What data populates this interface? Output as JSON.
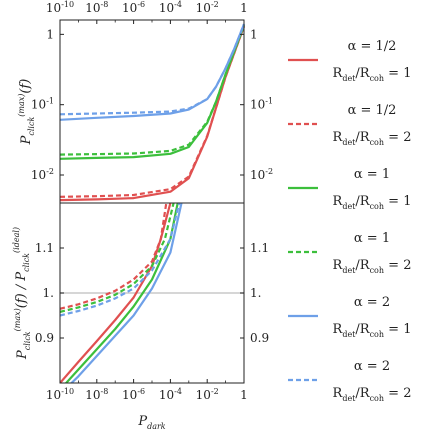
{
  "chart_data": {
    "type": "line",
    "x_scale": "log",
    "xlim": [
      1e-10,
      1
    ],
    "xlabel": "P_dark",
    "top_axis_ticks": [
      "10^-10",
      "10^-8",
      "10^-6",
      "10^-4",
      "10^-2",
      "1"
    ],
    "bottom_axis_ticks": [
      "10^-10",
      "10^-8",
      "10^-6",
      "10^-4",
      "10^-2",
      "1"
    ],
    "legend": [
      {
        "alpha": "α = 1/2",
        "ratio": "R_det/R_coh = 1",
        "color": "#e05050",
        "dashed": false
      },
      {
        "alpha": "α = 1/2",
        "ratio": "R_det/R_coh = 2",
        "color": "#e05050",
        "dashed": true
      },
      {
        "alpha": "α = 1",
        "ratio": "R_det/R_coh = 1",
        "color": "#3cbf3c",
        "dashed": false
      },
      {
        "alpha": "α = 1",
        "ratio": "R_det/R_coh = 2",
        "color": "#3cbf3c",
        "dashed": true
      },
      {
        "alpha": "α = 2",
        "ratio": "R_det/R_coh = 1",
        "color": "#6ea0e8",
        "dashed": false
      },
      {
        "alpha": "α = 2",
        "ratio": "R_det/R_coh = 2",
        "color": "#6ea0e8",
        "dashed": true
      }
    ],
    "panels": [
      {
        "ylabel": "P_click^(max)(f)",
        "y_scale": "log",
        "ylim": [
          0.004,
          1.6
        ],
        "y_ticks_left": [
          "1",
          "10^-1",
          "10^-2"
        ],
        "y_ticks_right": [
          "1",
          "10^-1",
          "10^-2"
        ],
        "series": [
          {
            "color": "#e05050",
            "dashed": false,
            "x": [
              1e-10,
              1e-08,
              1e-06,
              0.0001,
              0.001,
              0.01,
              0.03,
              0.1,
              0.3,
              1
            ],
            "y": [
              0.0044,
              0.0045,
              0.0047,
              0.0058,
              0.009,
              0.035,
              0.09,
              0.25,
              0.55,
              1.3
            ]
          },
          {
            "color": "#e05050",
            "dashed": true,
            "x": [
              1e-10,
              1e-08,
              1e-06,
              0.0001,
              0.001,
              0.01,
              0.03,
              0.1,
              0.3,
              1
            ],
            "y": [
              0.0049,
              0.005,
              0.0052,
              0.0063,
              0.0095,
              0.036,
              0.09,
              0.25,
              0.55,
              1.3
            ]
          },
          {
            "color": "#3cbf3c",
            "dashed": false,
            "x": [
              1e-10,
              1e-08,
              1e-06,
              0.0001,
              0.001,
              0.01,
              0.03,
              0.1,
              0.3,
              1
            ],
            "y": [
              0.017,
              0.0175,
              0.018,
              0.02,
              0.025,
              0.055,
              0.11,
              0.27,
              0.58,
              1.35
            ]
          },
          {
            "color": "#3cbf3c",
            "dashed": true,
            "x": [
              1e-10,
              1e-08,
              1e-06,
              0.0001,
              0.001,
              0.01,
              0.03,
              0.1,
              0.3,
              1
            ],
            "y": [
              0.0195,
              0.0198,
              0.0202,
              0.022,
              0.027,
              0.057,
              0.11,
              0.27,
              0.58,
              1.35
            ]
          },
          {
            "color": "#6ea0e8",
            "dashed": false,
            "x": [
              1e-10,
              1e-08,
              1e-06,
              0.0001,
              0.001,
              0.01,
              0.03,
              0.1,
              0.3,
              1
            ],
            "y": [
              0.061,
              0.065,
              0.069,
              0.075,
              0.085,
              0.12,
              0.18,
              0.33,
              0.63,
              1.4
            ]
          },
          {
            "color": "#6ea0e8",
            "dashed": true,
            "x": [
              1e-10,
              1e-08,
              1e-06,
              0.0001,
              0.001,
              0.01,
              0.03,
              0.1,
              0.3,
              1
            ],
            "y": [
              0.073,
              0.075,
              0.077,
              0.08,
              0.088,
              0.12,
              0.18,
              0.33,
              0.63,
              1.4
            ]
          }
        ]
      },
      {
        "ylabel": "P_click^(max)(f) / P_click^(ideal)",
        "y_scale": "linear",
        "ylim": [
          0.8,
          1.2
        ],
        "y_ticks_left": [
          "1.1",
          "1.",
          "0.9"
        ],
        "y_ticks_right": [
          "1.1",
          "1.",
          "0.9"
        ],
        "reference_line": 1.0,
        "series": [
          {
            "color": "#e05050",
            "dashed": false,
            "x": [
              1e-10,
              1e-09,
              1e-08,
              1e-07,
              1e-06,
              1e-05,
              3e-05,
              0.0001
            ],
            "y": [
              0.8,
              0.847,
              0.893,
              0.94,
              0.99,
              1.06,
              1.12,
              1.2
            ]
          },
          {
            "color": "#e05050",
            "dashed": true,
            "x": [
              1e-10,
              1e-09,
              1e-08,
              1e-07,
              1e-06,
              1e-05,
              3e-05,
              6e-05
            ],
            "y": [
              0.965,
              0.975,
              0.988,
              1.005,
              1.03,
              1.07,
              1.12,
              1.2
            ]
          },
          {
            "color": "#3cbf3c",
            "dashed": false,
            "x": [
              1e-10,
              1e-09,
              1e-08,
              1e-07,
              1e-06,
              1e-05,
              0.0001,
              0.00025
            ],
            "y": [
              0.785,
              0.83,
              0.875,
              0.92,
              0.97,
              1.03,
              1.12,
              1.2
            ]
          },
          {
            "color": "#3cbf3c",
            "dashed": true,
            "x": [
              1e-10,
              1e-09,
              1e-08,
              1e-07,
              1e-06,
              1e-05,
              5e-05,
              0.00015
            ],
            "y": [
              0.958,
              0.968,
              0.98,
              0.996,
              1.02,
              1.06,
              1.12,
              1.2
            ]
          },
          {
            "color": "#6ea0e8",
            "dashed": false,
            "x": [
              1e-10,
              1e-09,
              1e-08,
              1e-07,
              1e-06,
              1e-05,
              0.0001,
              0.0004
            ],
            "y": [
              0.775,
              0.815,
              0.86,
              0.905,
              0.95,
              1.01,
              1.09,
              1.2
            ]
          },
          {
            "color": "#6ea0e8",
            "dashed": true,
            "x": [
              1e-10,
              1e-09,
              1e-08,
              1e-07,
              1e-06,
              1e-05,
              0.0001,
              0.0003
            ],
            "y": [
              0.95,
              0.96,
              0.972,
              0.988,
              1.01,
              1.05,
              1.12,
              1.2
            ]
          }
        ]
      }
    ]
  }
}
